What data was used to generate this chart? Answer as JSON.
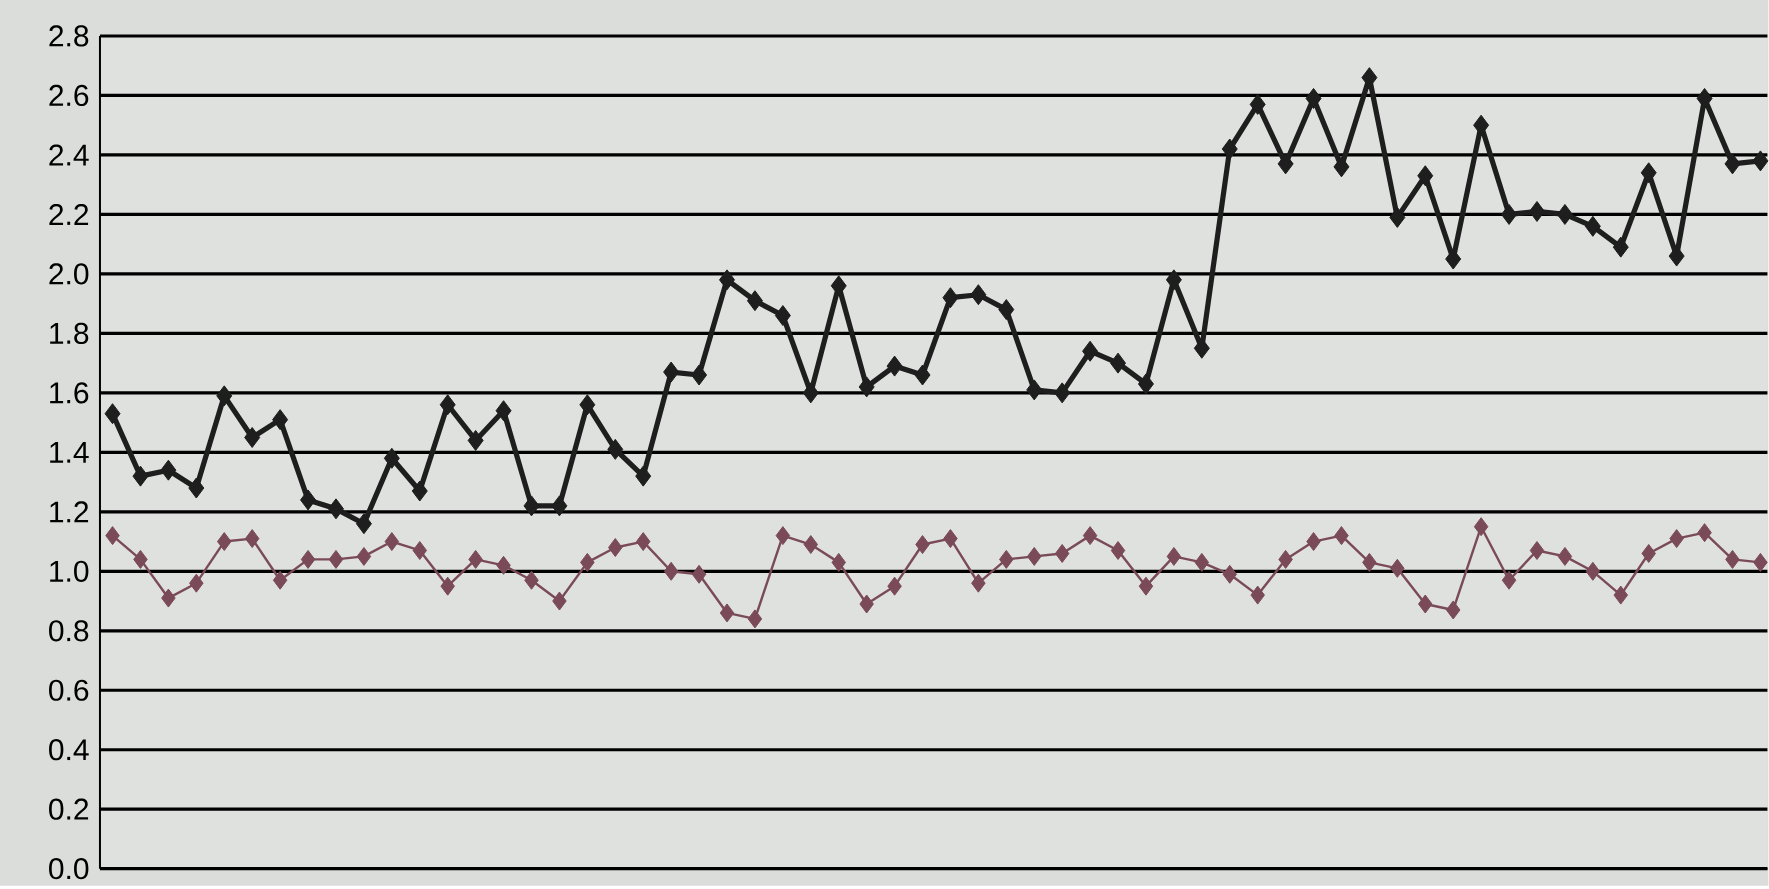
{
  "chart_data": {
    "type": "line",
    "categories": [
      null,
      null,
      null,
      null,
      null,
      null,
      null,
      null,
      null,
      null,
      null,
      null,
      null,
      null,
      null,
      null,
      null,
      null,
      null,
      null,
      null,
      null,
      null,
      null,
      null,
      null,
      null,
      null,
      null,
      null,
      null,
      null,
      null,
      null,
      null,
      null,
      null,
      null,
      null,
      null,
      null,
      null,
      null,
      null,
      null,
      null,
      null,
      null,
      null,
      null,
      null,
      null,
      null,
      null,
      null,
      null,
      null,
      null,
      null,
      null
    ],
    "series": [
      {
        "color": "#1e1e1e",
        "values": [
          1.53,
          1.32,
          1.34,
          1.28,
          1.59,
          1.45,
          1.51,
          1.24,
          1.21,
          1.16,
          1.38,
          1.27,
          1.56,
          1.44,
          1.54,
          1.22,
          1.22,
          1.56,
          1.41,
          1.32,
          1.67,
          1.66,
          1.98,
          1.91,
          1.86,
          1.6,
          1.96,
          1.62,
          1.69,
          1.66,
          1.92,
          1.93,
          1.88,
          1.61,
          1.6,
          1.74,
          1.7,
          1.63,
          1.98,
          1.75,
          2.42,
          2.57,
          2.37,
          2.59,
          2.36,
          2.66,
          2.19,
          2.33,
          2.05,
          2.5,
          2.2,
          2.21,
          2.2,
          2.16,
          2.09,
          2.34,
          2.06,
          2.59,
          2.37,
          2.38
        ]
      },
      {
        "color": "#7a4a58",
        "values": [
          1.12,
          1.04,
          0.91,
          0.96,
          1.1,
          1.11,
          0.97,
          1.04,
          1.04,
          1.05,
          1.1,
          1.07,
          0.95,
          1.04,
          1.02,
          0.97,
          0.9,
          1.03,
          1.08,
          1.1,
          1.0,
          0.99,
          0.86,
          0.84,
          1.12,
          1.09,
          1.03,
          0.89,
          0.95,
          1.09,
          1.11,
          0.96,
          1.04,
          1.05,
          1.06,
          1.12,
          1.07,
          0.95,
          1.05,
          1.03,
          0.99,
          0.92,
          1.04,
          1.1,
          1.12,
          1.03,
          1.01,
          0.89,
          0.87,
          1.15,
          0.97,
          1.07,
          1.05,
          1.0,
          0.92,
          1.06,
          1.11,
          1.13,
          1.04,
          1.03
        ]
      }
    ],
    "ylim": [
      0,
      2.8
    ],
    "yticks": [
      {
        "value": 0,
        "label": "0.0"
      },
      0.2,
      0.4,
      0.6,
      0.8,
      {
        "value": 1,
        "label": "1.0"
      },
      1.2,
      1.4,
      1.6,
      1.8,
      {
        "value": 2,
        "label": "2.0"
      },
      2.2,
      2.4,
      2.6,
      2.8
    ],
    "grid": "y",
    "marker": "diamond",
    "line_style": "solid",
    "tick_labels": "y"
  }
}
